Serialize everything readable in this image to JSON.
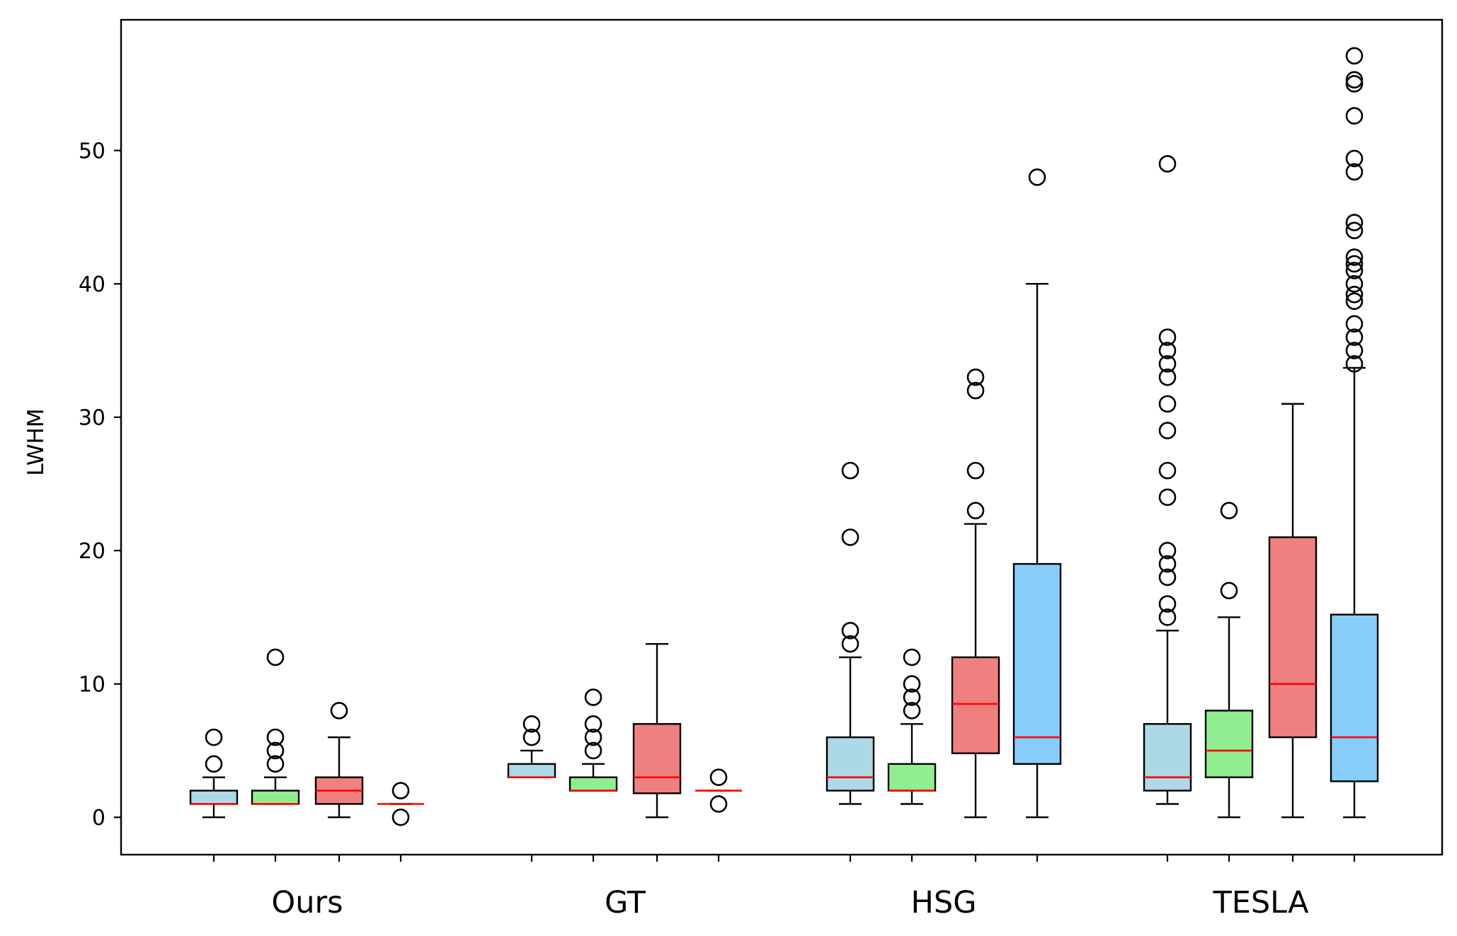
{
  "chart_data": {
    "type": "boxplot",
    "ylabel": "LWHM",
    "ylim": [
      -2.8,
      59.8
    ],
    "yticks": [
      0,
      10,
      20,
      30,
      40,
      50
    ],
    "groups": [
      "Ours",
      "GT",
      "HSG",
      "TESLA"
    ],
    "series_colors": [
      "#add8e6",
      "#90ee90",
      "#f08080",
      "#87cefa"
    ],
    "median_color": "#ff0000",
    "boxes": [
      {
        "group": "Ours",
        "series": 0,
        "whisker_low": 0,
        "q1": 1,
        "median": 1,
        "q3": 2,
        "whisker_high": 3,
        "outliers": [
          4,
          6
        ]
      },
      {
        "group": "Ours",
        "series": 1,
        "whisker_low": 1,
        "q1": 1,
        "median": 1,
        "q3": 2,
        "whisker_high": 3,
        "outliers": [
          4,
          5,
          6,
          12
        ]
      },
      {
        "group": "Ours",
        "series": 2,
        "whisker_low": 0,
        "q1": 1,
        "median": 2,
        "q3": 3,
        "whisker_high": 6,
        "outliers": [
          8
        ]
      },
      {
        "group": "Ours",
        "series": 3,
        "whisker_low": 1,
        "q1": 1,
        "median": 1,
        "q3": 1,
        "whisker_high": 1,
        "outliers": [
          0,
          2
        ]
      },
      {
        "group": "GT",
        "series": 0,
        "whisker_low": 3,
        "q1": 3,
        "median": 3,
        "q3": 4,
        "whisker_high": 5,
        "outliers": [
          6,
          7
        ]
      },
      {
        "group": "GT",
        "series": 1,
        "whisker_low": 2,
        "q1": 2,
        "median": 2,
        "q3": 3,
        "whisker_high": 4,
        "outliers": [
          5,
          6,
          7,
          9
        ]
      },
      {
        "group": "GT",
        "series": 2,
        "whisker_low": 0,
        "q1": 1.8,
        "median": 3,
        "q3": 7,
        "whisker_high": 13,
        "outliers": []
      },
      {
        "group": "GT",
        "series": 3,
        "whisker_low": 2,
        "q1": 2,
        "median": 2,
        "q3": 2,
        "whisker_high": 2,
        "outliers": [
          1,
          3
        ]
      },
      {
        "group": "HSG",
        "series": 0,
        "whisker_low": 1,
        "q1": 2,
        "median": 3,
        "q3": 6,
        "whisker_high": 12,
        "outliers": [
          13,
          14,
          21,
          26
        ]
      },
      {
        "group": "HSG",
        "series": 1,
        "whisker_low": 1,
        "q1": 2,
        "median": 2,
        "q3": 4,
        "whisker_high": 7,
        "outliers": [
          8,
          9,
          10,
          12
        ]
      },
      {
        "group": "HSG",
        "series": 2,
        "whisker_low": 0,
        "q1": 4.8,
        "median": 8.5,
        "q3": 12,
        "whisker_high": 22,
        "outliers": [
          23,
          26,
          32,
          33
        ]
      },
      {
        "group": "HSG",
        "series": 3,
        "whisker_low": 0,
        "q1": 4,
        "median": 6,
        "q3": 19,
        "whisker_high": 40,
        "outliers": [
          48
        ]
      },
      {
        "group": "TESLA",
        "series": 0,
        "whisker_low": 1,
        "q1": 2,
        "median": 3,
        "q3": 7,
        "whisker_high": 14,
        "outliers": [
          15,
          16,
          18,
          19,
          20,
          24,
          26,
          29,
          31,
          33,
          34,
          35,
          36,
          49
        ]
      },
      {
        "group": "TESLA",
        "series": 1,
        "whisker_low": 0,
        "q1": 3,
        "median": 5,
        "q3": 8,
        "whisker_high": 15,
        "outliers": [
          17,
          23
        ]
      },
      {
        "group": "TESLA",
        "series": 2,
        "whisker_low": 0,
        "q1": 6,
        "median": 10,
        "q3": 21,
        "whisker_high": 31,
        "outliers": []
      },
      {
        "group": "TESLA",
        "series": 3,
        "whisker_low": 0,
        "q1": 2.7,
        "median": 6,
        "q3": 15.2,
        "whisker_high": 33.7,
        "outliers": [
          34,
          35,
          36,
          37,
          38.7,
          39.2,
          40,
          41,
          41.5,
          42,
          44,
          44.6,
          48.4,
          49.4,
          52.6,
          55,
          55.3,
          57.1
        ]
      }
    ]
  }
}
